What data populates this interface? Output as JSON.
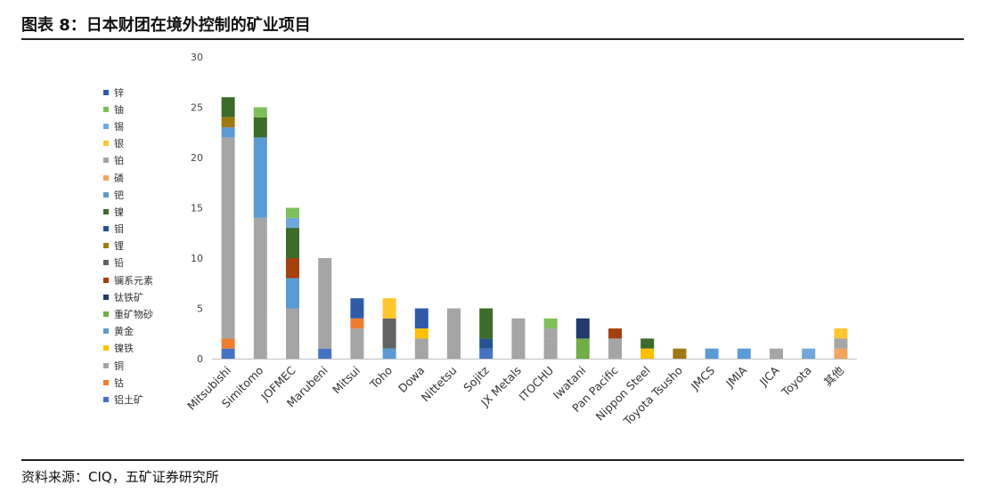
{
  "header": {
    "title": "图表 8：日本财团在境外控制的矿业项目"
  },
  "footer": {
    "source": "资料来源：CIQ，五矿证券研究所"
  },
  "legend": [
    {
      "name": "锌",
      "color": "#2e5aa8"
    },
    {
      "name": "铀",
      "color": "#7fbf5b"
    },
    {
      "name": "锡",
      "color": "#6ea8dc"
    },
    {
      "name": "银",
      "color": "#ffc62e"
    },
    {
      "name": "铂",
      "color": "#a5a5a5"
    },
    {
      "name": "磷",
      "color": "#f4a35e"
    },
    {
      "name": "钯",
      "color": "#5b9bd5"
    },
    {
      "name": "镍",
      "color": "#3c6b2a"
    },
    {
      "name": "钼",
      "color": "#25538f"
    },
    {
      "name": "锂",
      "color": "#9e7a10"
    },
    {
      "name": "铅",
      "color": "#636363"
    },
    {
      "name": "镧系元素",
      "color": "#a5400f"
    },
    {
      "name": "钛铁矿",
      "color": "#1f3a6b"
    },
    {
      "name": "重矿物砂",
      "color": "#70ad47"
    },
    {
      "name": "黄金",
      "color": "#5b9bd5"
    },
    {
      "name": "镍铁",
      "color": "#ffc000"
    },
    {
      "name": "铜",
      "color": "#a5a5a5"
    },
    {
      "name": "钴",
      "color": "#ed7d31"
    },
    {
      "name": "铝土矿",
      "color": "#4472c4"
    }
  ],
  "chart_data": {
    "type": "bar",
    "stacked": true,
    "title": "日本财团在境外控制的矿业项目",
    "ylim": [
      0,
      30
    ],
    "yticks": [
      0,
      5,
      10,
      15,
      20,
      25,
      30
    ],
    "categories": [
      "Mitsubishi",
      "Simitomo",
      "JOFMEC",
      "Marubeni",
      "Mitsui",
      "Toho",
      "Dowa",
      "Nittetsu",
      "Sojitz",
      "JX Metals",
      "ITOCHU",
      "Iwatani",
      "Pan Pacific",
      "Nippon Steel",
      "Toyota Tsusho",
      "JMCS",
      "JMIA",
      "JICA",
      "Toyota",
      "其他"
    ],
    "stacks": [
      [
        {
          "s": "铝土矿",
          "v": 1
        },
        {
          "s": "钴",
          "v": 1
        },
        {
          "s": "铜",
          "v": 20
        },
        {
          "s": "黄金",
          "v": 1
        },
        {
          "s": "锂",
          "v": 1
        },
        {
          "s": "镍",
          "v": 2
        }
      ],
      [
        {
          "s": "铜",
          "v": 14
        },
        {
          "s": "黄金",
          "v": 8
        },
        {
          "s": "镍",
          "v": 2
        },
        {
          "s": "铀",
          "v": 1
        }
      ],
      [
        {
          "s": "铜",
          "v": 5
        },
        {
          "s": "黄金",
          "v": 3
        },
        {
          "s": "镧系元素",
          "v": 2
        },
        {
          "s": "镍",
          "v": 3
        },
        {
          "s": "锡",
          "v": 1
        },
        {
          "s": "铀",
          "v": 1
        }
      ],
      [
        {
          "s": "铝土矿",
          "v": 1
        },
        {
          "s": "铜",
          "v": 9
        }
      ],
      [
        {
          "s": "铜",
          "v": 3
        },
        {
          "s": "钴",
          "v": 1
        },
        {
          "s": "锌",
          "v": 2
        }
      ],
      [
        {
          "s": "黄金",
          "v": 1
        },
        {
          "s": "铅",
          "v": 3
        },
        {
          "s": "银",
          "v": 2
        }
      ],
      [
        {
          "s": "铜",
          "v": 2
        },
        {
          "s": "镍铁",
          "v": 1
        },
        {
          "s": "锌",
          "v": 2
        }
      ],
      [
        {
          "s": "铜",
          "v": 5
        }
      ],
      [
        {
          "s": "铝土矿",
          "v": 1
        },
        {
          "s": "钼",
          "v": 1
        },
        {
          "s": "镍",
          "v": 3
        }
      ],
      [
        {
          "s": "铜",
          "v": 4
        }
      ],
      [
        {
          "s": "铜",
          "v": 2
        },
        {
          "s": "铂",
          "v": 1
        },
        {
          "s": "铀",
          "v": 1
        }
      ],
      [
        {
          "s": "重矿物砂",
          "v": 2
        },
        {
          "s": "钛铁矿",
          "v": 2
        }
      ],
      [
        {
          "s": "铜",
          "v": 2
        },
        {
          "s": "镧系元素",
          "v": 1
        }
      ],
      [
        {
          "s": "镍铁",
          "v": 1
        },
        {
          "s": "镍",
          "v": 1
        }
      ],
      [
        {
          "s": "锂",
          "v": 1
        }
      ],
      [
        {
          "s": "黄金",
          "v": 1
        }
      ],
      [
        {
          "s": "黄金",
          "v": 1
        }
      ],
      [
        {
          "s": "铜",
          "v": 1
        }
      ],
      [
        {
          "s": "锡",
          "v": 1
        }
      ],
      [
        {
          "s": "磷",
          "v": 1
        },
        {
          "s": "铂",
          "v": 1
        },
        {
          "s": "银",
          "v": 1
        }
      ]
    ]
  }
}
